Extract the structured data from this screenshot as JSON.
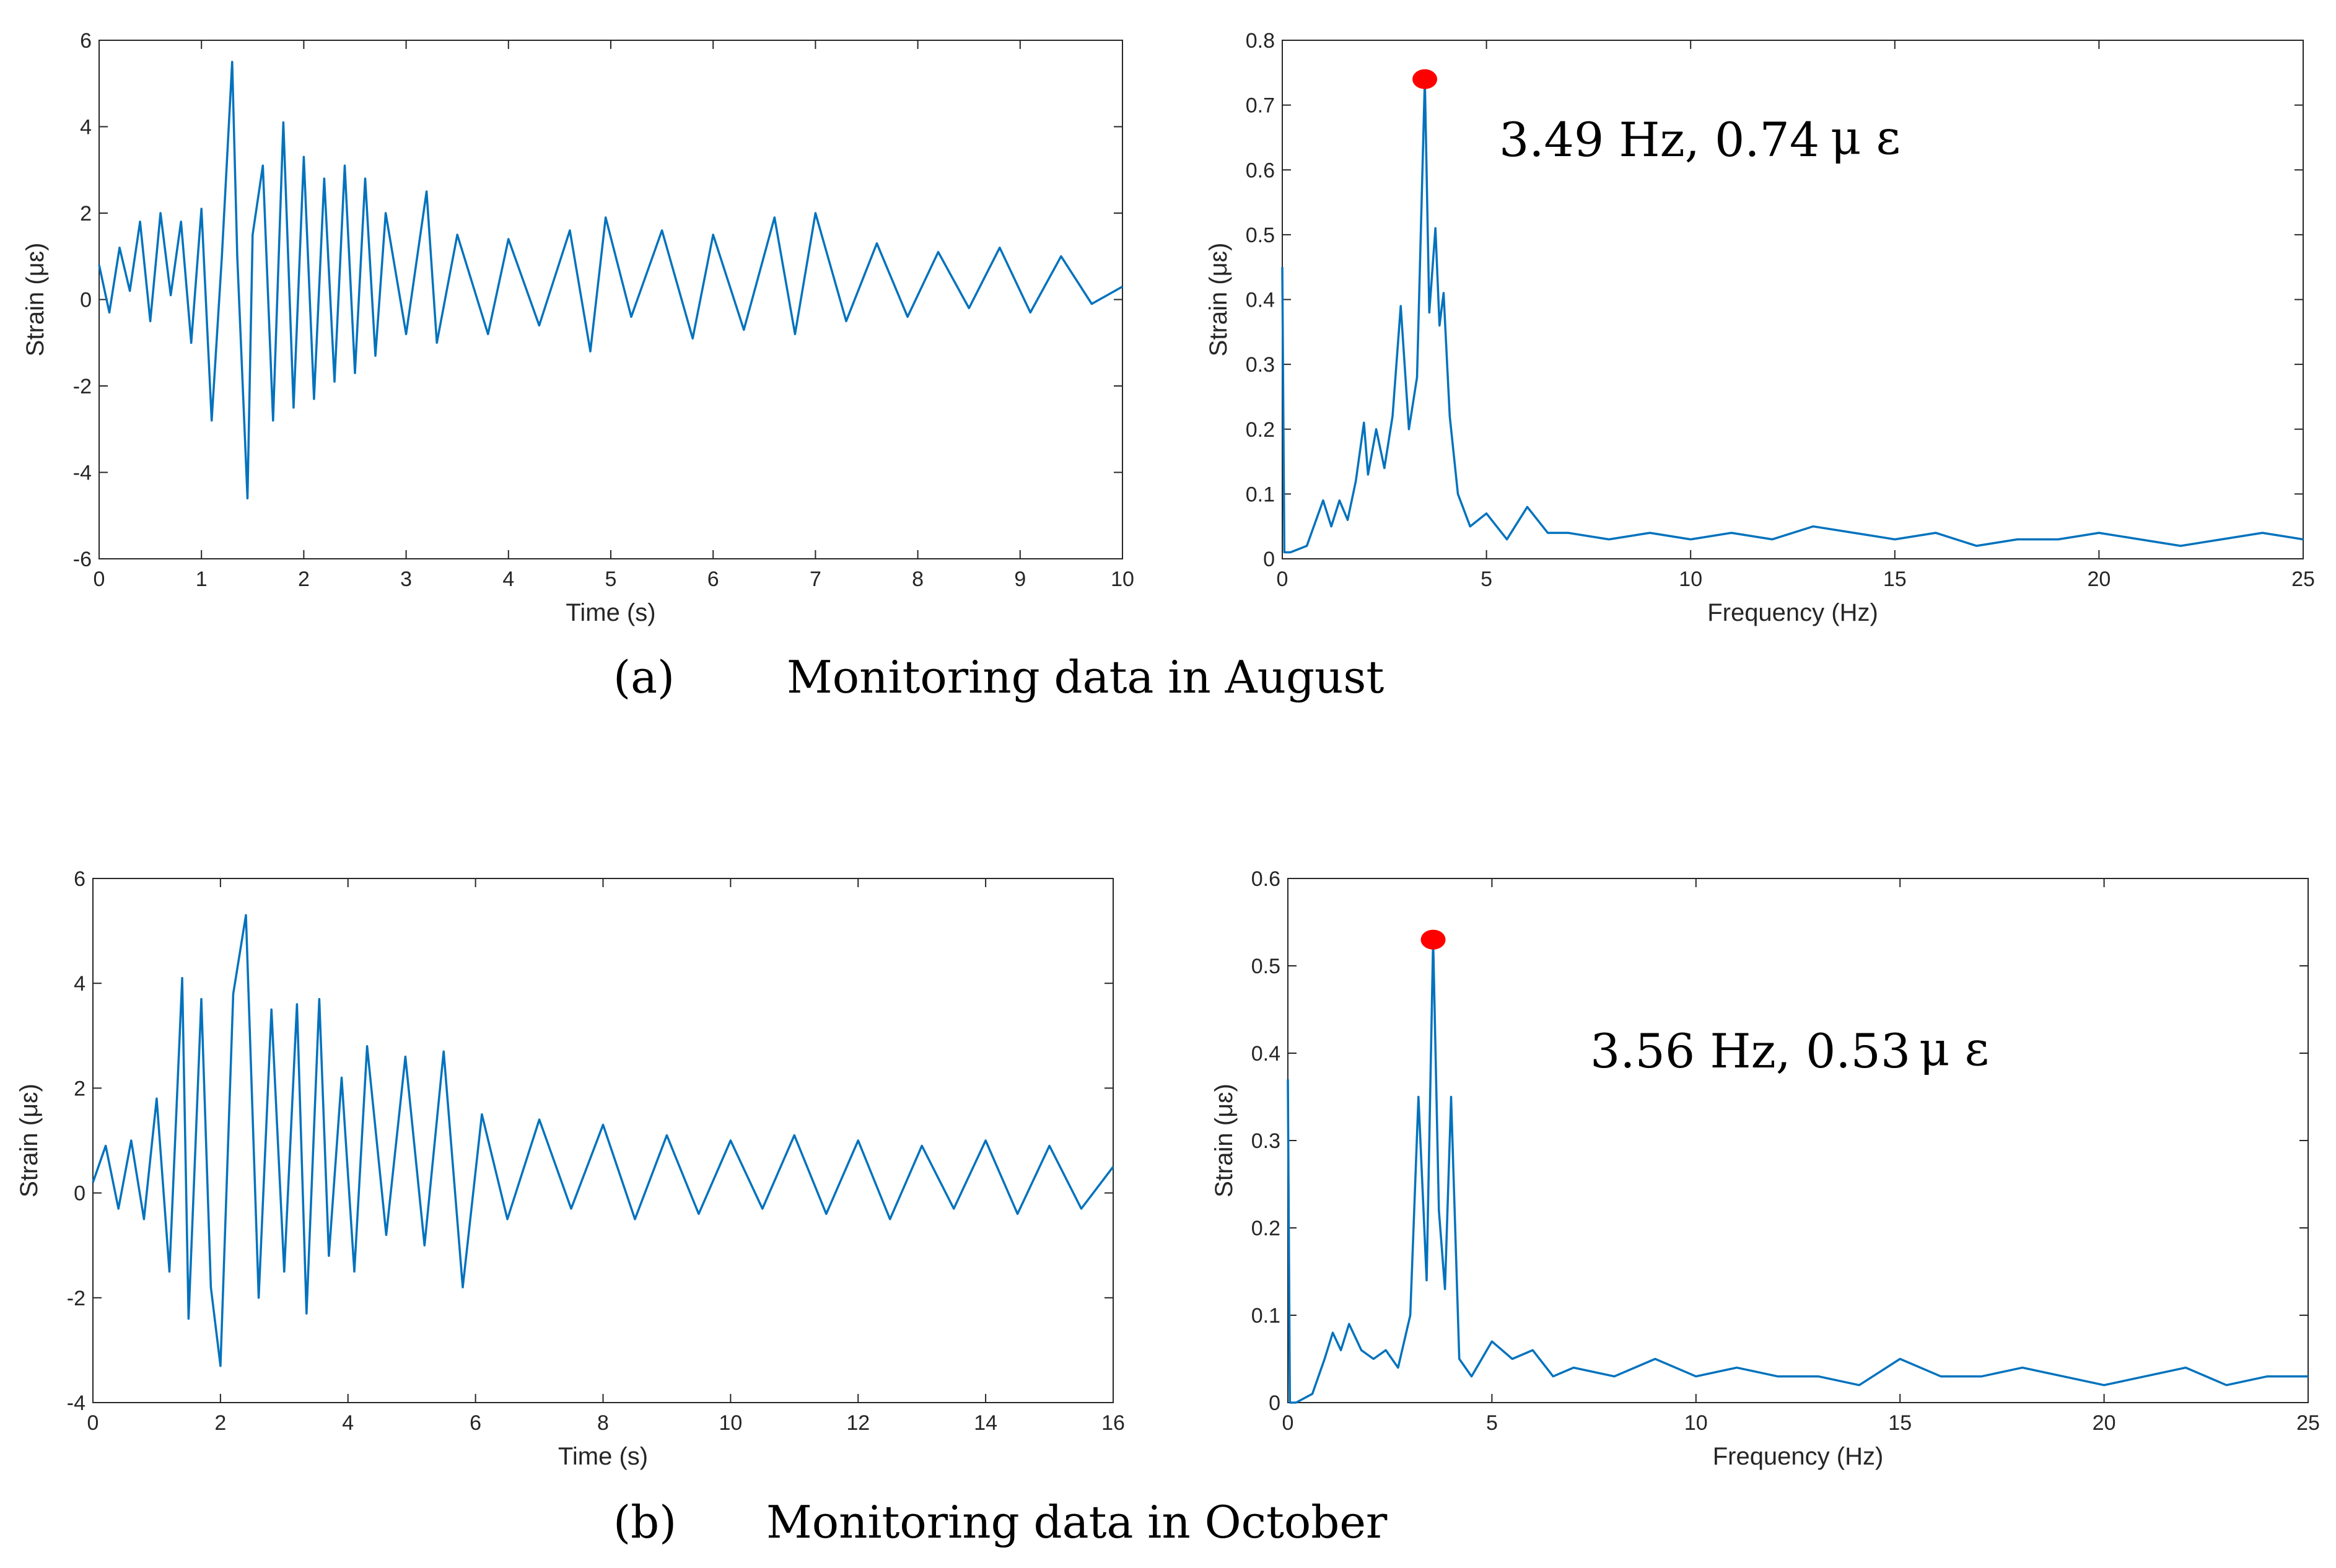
{
  "chart_data": [
    {
      "id": "a-time",
      "type": "line",
      "xlabel": "Time (s)",
      "ylabel": "Strain (μɛ)",
      "xlim": [
        0,
        10
      ],
      "ylim": [
        -6,
        6
      ],
      "xticks": [
        "0",
        "1",
        "2",
        "3",
        "4",
        "5",
        "6",
        "7",
        "8",
        "9",
        "10"
      ],
      "yticks": [
        "-6",
        "-4",
        "-2",
        "0",
        "2",
        "4",
        "6"
      ],
      "series": [
        {
          "name": "strain",
          "color": "#0072BD",
          "x": [
            0,
            0.1,
            0.2,
            0.3,
            0.4,
            0.5,
            0.6,
            0.7,
            0.8,
            0.9,
            1.0,
            1.1,
            1.2,
            1.3,
            1.35,
            1.45,
            1.5,
            1.6,
            1.7,
            1.8,
            1.9,
            2.0,
            2.1,
            2.2,
            2.3,
            2.4,
            2.5,
            2.6,
            2.7,
            2.8,
            3.0,
            3.2,
            3.3,
            3.5,
            3.8,
            4.0,
            4.3,
            4.6,
            4.8,
            4.95,
            5.2,
            5.5,
            5.8,
            6.0,
            6.3,
            6.6,
            6.8,
            7.0,
            7.3,
            7.6,
            7.9,
            8.2,
            8.5,
            8.8,
            9.1,
            9.4,
            9.7,
            10.0
          ],
          "y": [
            0.8,
            -0.3,
            1.2,
            0.2,
            1.8,
            -0.5,
            2.0,
            0.1,
            1.8,
            -1.0,
            2.1,
            -2.8,
            1.0,
            5.5,
            1.0,
            -4.6,
            1.5,
            3.1,
            -2.8,
            4.1,
            -2.5,
            3.3,
            -2.3,
            2.8,
            -1.9,
            3.1,
            -1.7,
            2.8,
            -1.3,
            2.0,
            -0.8,
            2.5,
            -1.0,
            1.5,
            -0.8,
            1.4,
            -0.6,
            1.6,
            -1.2,
            1.9,
            -0.4,
            1.6,
            -0.9,
            1.5,
            -0.7,
            1.9,
            -0.8,
            2.0,
            -0.5,
            1.3,
            -0.4,
            1.1,
            -0.2,
            1.2,
            -0.3,
            1.0,
            -0.1,
            0.3
          ]
        }
      ]
    },
    {
      "id": "a-freq",
      "type": "line",
      "xlabel": "Frequency (Hz)",
      "ylabel": "Strain (μɛ)",
      "xlim": [
        0,
        25
      ],
      "ylim": [
        0,
        0.8
      ],
      "xticks": [
        "0",
        "5",
        "10",
        "15",
        "20",
        "25"
      ],
      "yticks": [
        "0",
        "0.1",
        "0.2",
        "0.3",
        "0.4",
        "0.5",
        "0.6",
        "0.7",
        "0.8"
      ],
      "series": [
        {
          "name": "spectrum",
          "color": "#0072BD",
          "x": [
            0,
            0.05,
            0.2,
            0.6,
            1.0,
            1.2,
            1.4,
            1.6,
            1.8,
            2.0,
            2.1,
            2.3,
            2.5,
            2.7,
            2.9,
            3.1,
            3.3,
            3.49,
            3.6,
            3.75,
            3.85,
            3.95,
            4.1,
            4.3,
            4.6,
            5.0,
            5.5,
            6.0,
            6.5,
            7.0,
            8.0,
            9.0,
            10.0,
            11.0,
            12.0,
            13.0,
            14.0,
            15.0,
            16.0,
            17.0,
            18.0,
            19.0,
            20.0,
            21.0,
            22.0,
            23.0,
            24.0,
            25.0
          ],
          "y": [
            0.45,
            0.01,
            0.01,
            0.02,
            0.09,
            0.05,
            0.09,
            0.06,
            0.12,
            0.21,
            0.13,
            0.2,
            0.14,
            0.22,
            0.39,
            0.2,
            0.28,
            0.74,
            0.38,
            0.51,
            0.36,
            0.41,
            0.22,
            0.1,
            0.05,
            0.07,
            0.03,
            0.08,
            0.04,
            0.04,
            0.03,
            0.04,
            0.03,
            0.04,
            0.03,
            0.05,
            0.04,
            0.03,
            0.04,
            0.02,
            0.03,
            0.03,
            0.04,
            0.03,
            0.02,
            0.03,
            0.04,
            0.03
          ]
        }
      ],
      "peak": {
        "x": 3.49,
        "y": 0.74,
        "color": "#FF0000"
      },
      "annotation": {
        "value": "3.49 Hz, 0.74",
        "unit": "μ ε"
      }
    },
    {
      "id": "b-time",
      "type": "line",
      "xlabel": "Time (s)",
      "ylabel": "Strain (μɛ)",
      "xlim": [
        0,
        16
      ],
      "ylim": [
        -4,
        6
      ],
      "xticks": [
        "0",
        "2",
        "4",
        "6",
        "8",
        "10",
        "12",
        "14",
        "16"
      ],
      "yticks": [
        "-4",
        "-2",
        "0",
        "2",
        "4",
        "6"
      ],
      "series": [
        {
          "name": "strain",
          "color": "#0072BD",
          "x": [
            0,
            0.2,
            0.4,
            0.6,
            0.8,
            1.0,
            1.2,
            1.4,
            1.5,
            1.7,
            1.85,
            2.0,
            2.2,
            2.4,
            2.6,
            2.8,
            3.0,
            3.2,
            3.35,
            3.55,
            3.7,
            3.9,
            4.1,
            4.3,
            4.6,
            4.9,
            5.2,
            5.5,
            5.8,
            6.1,
            6.5,
            7.0,
            7.5,
            8.0,
            8.5,
            9.0,
            9.5,
            10.0,
            10.5,
            11.0,
            11.5,
            12.0,
            12.5,
            13.0,
            13.5,
            14.0,
            14.5,
            15.0,
            15.5,
            16.0
          ],
          "y": [
            0.2,
            0.9,
            -0.3,
            1.0,
            -0.5,
            1.8,
            -1.5,
            4.1,
            -2.4,
            3.7,
            -1.8,
            -3.3,
            3.8,
            5.3,
            -2.0,
            3.5,
            -1.5,
            3.6,
            -2.3,
            3.7,
            -1.2,
            2.2,
            -1.5,
            2.8,
            -0.8,
            2.6,
            -1.0,
            2.7,
            -1.8,
            1.5,
            -0.5,
            1.4,
            -0.3,
            1.3,
            -0.5,
            1.1,
            -0.4,
            1.0,
            -0.3,
            1.1,
            -0.4,
            1.0,
            -0.5,
            0.9,
            -0.3,
            1.0,
            -0.4,
            0.9,
            -0.3,
            0.5
          ]
        }
      ]
    },
    {
      "id": "b-freq",
      "type": "line",
      "xlabel": "Frequency (Hz)",
      "ylabel": "Strain (μɛ)",
      "xlim": [
        0,
        25
      ],
      "ylim": [
        0,
        0.6
      ],
      "xticks": [
        "0",
        "5",
        "10",
        "15",
        "20",
        "25"
      ],
      "yticks": [
        "0",
        "0.1",
        "0.2",
        "0.3",
        "0.4",
        "0.5",
        "0.6"
      ],
      "series": [
        {
          "name": "spectrum",
          "color": "#0072BD",
          "x": [
            0,
            0.05,
            0.2,
            0.6,
            0.9,
            1.1,
            1.3,
            1.5,
            1.8,
            2.1,
            2.4,
            2.7,
            3.0,
            3.2,
            3.4,
            3.56,
            3.7,
            3.85,
            4.0,
            4.2,
            4.5,
            5.0,
            5.5,
            6.0,
            6.5,
            7.0,
            8.0,
            9.0,
            10.0,
            11.0,
            12.0,
            13.0,
            14.0,
            15.0,
            16.0,
            17.0,
            18.0,
            19.0,
            20.0,
            21.0,
            22.0,
            23.0,
            24.0,
            25.0
          ],
          "y": [
            0.37,
            0.0,
            0.0,
            0.01,
            0.05,
            0.08,
            0.06,
            0.09,
            0.06,
            0.05,
            0.06,
            0.04,
            0.1,
            0.35,
            0.14,
            0.53,
            0.22,
            0.13,
            0.35,
            0.05,
            0.03,
            0.07,
            0.05,
            0.06,
            0.03,
            0.04,
            0.03,
            0.05,
            0.03,
            0.04,
            0.03,
            0.03,
            0.02,
            0.05,
            0.03,
            0.03,
            0.04,
            0.03,
            0.02,
            0.03,
            0.04,
            0.02,
            0.03,
            0.03
          ]
        }
      ],
      "peak": {
        "x": 3.56,
        "y": 0.53,
        "color": "#FF0000"
      },
      "annotation": {
        "value": "3.56 Hz, 0.53",
        "unit": "μ ε"
      }
    }
  ],
  "captions": {
    "a_letter": "(a)",
    "a_text": "Monitoring data in August",
    "b_letter": "(b)",
    "b_text": "Monitoring data in October"
  }
}
